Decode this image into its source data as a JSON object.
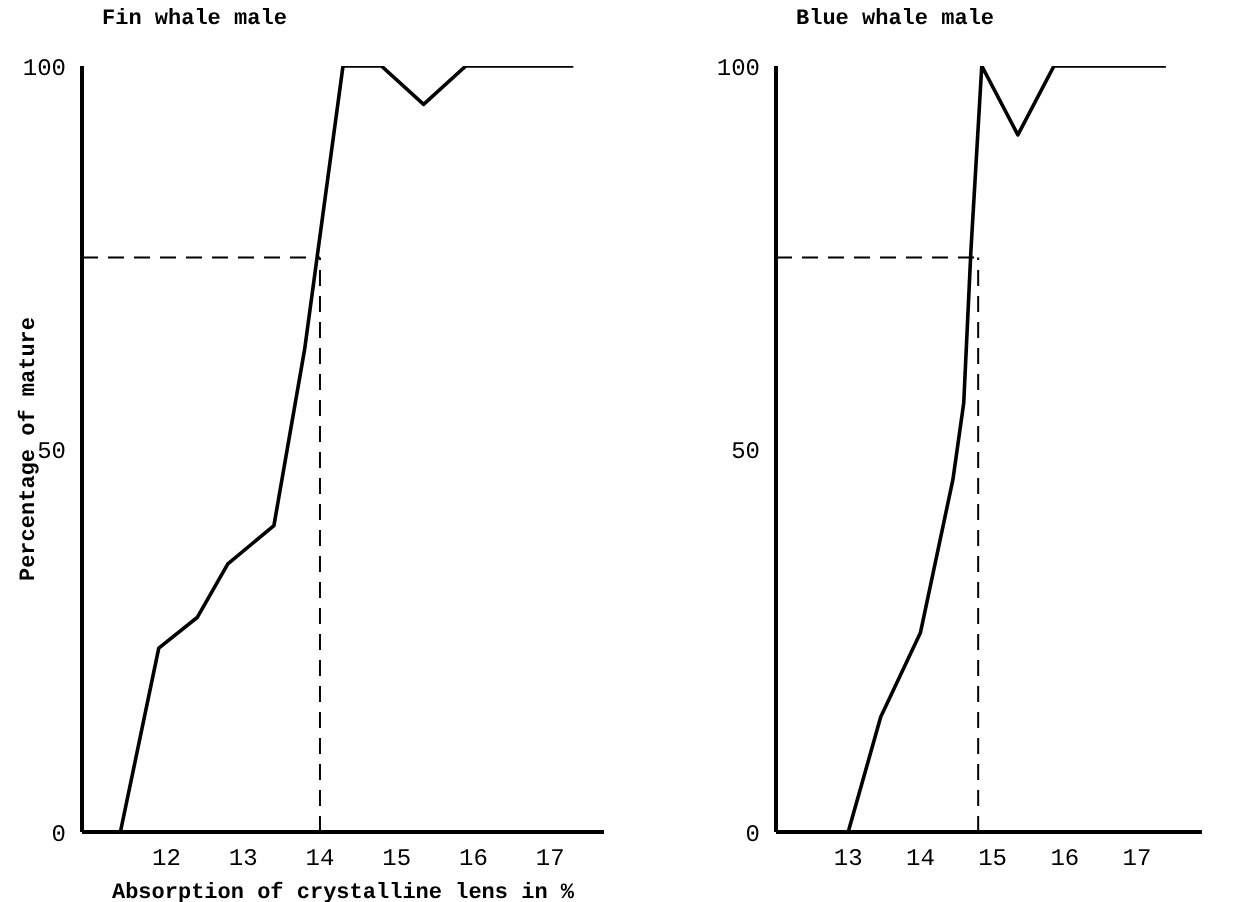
{
  "chart_data": [
    {
      "type": "line",
      "title": "Fin whale male",
      "xlabel": "Absorption of crystalline lens in %",
      "ylabel": "Percentage of mature",
      "x": [
        11.4,
        11.9,
        12.4,
        12.8,
        13.4,
        13.8,
        14.3,
        14.8,
        15.35,
        15.9,
        17.3
      ],
      "series": [
        {
          "color": "#000000",
          "values": [
            0,
            24,
            28,
            35,
            40,
            63,
            100,
            100,
            95,
            100,
            100
          ]
        }
      ],
      "xlim": [
        10.9,
        17.7
      ],
      "xticks": [
        12,
        13,
        14,
        15,
        16,
        17
      ],
      "ylim": [
        0,
        100
      ],
      "yticks": [
        0,
        50,
        100
      ],
      "grid": false,
      "marker": "none",
      "line_style": "solid",
      "ref_lines": [
        {
          "axis": "y",
          "value": 75,
          "color": "#000000",
          "line_style": "dashed"
        },
        {
          "axis": "x",
          "value": 14,
          "color": "#000000",
          "line_style": "dashed"
        }
      ]
    },
    {
      "type": "line",
      "title": "Blue whale male",
      "x": [
        13.0,
        13.45,
        14.0,
        14.45,
        14.6,
        14.7,
        14.85,
        15.35,
        15.85,
        17.4
      ],
      "series": [
        {
          "color": "#000000",
          "values": [
            0,
            15,
            26,
            46,
            56,
            76,
            100,
            91,
            100,
            100
          ]
        }
      ],
      "xlim": [
        12.0,
        17.9
      ],
      "xticks": [
        13,
        14,
        15,
        16,
        17
      ],
      "ylim": [
        0,
        100
      ],
      "yticks": [
        0,
        50,
        100
      ],
      "grid": false,
      "marker": "none",
      "line_style": "solid",
      "ref_lines": [
        {
          "axis": "y",
          "value": 75,
          "color": "#000000",
          "line_style": "dashed"
        },
        {
          "axis": "x",
          "value": 14.8,
          "color": "#000000",
          "line_style": "dashed"
        }
      ]
    }
  ]
}
